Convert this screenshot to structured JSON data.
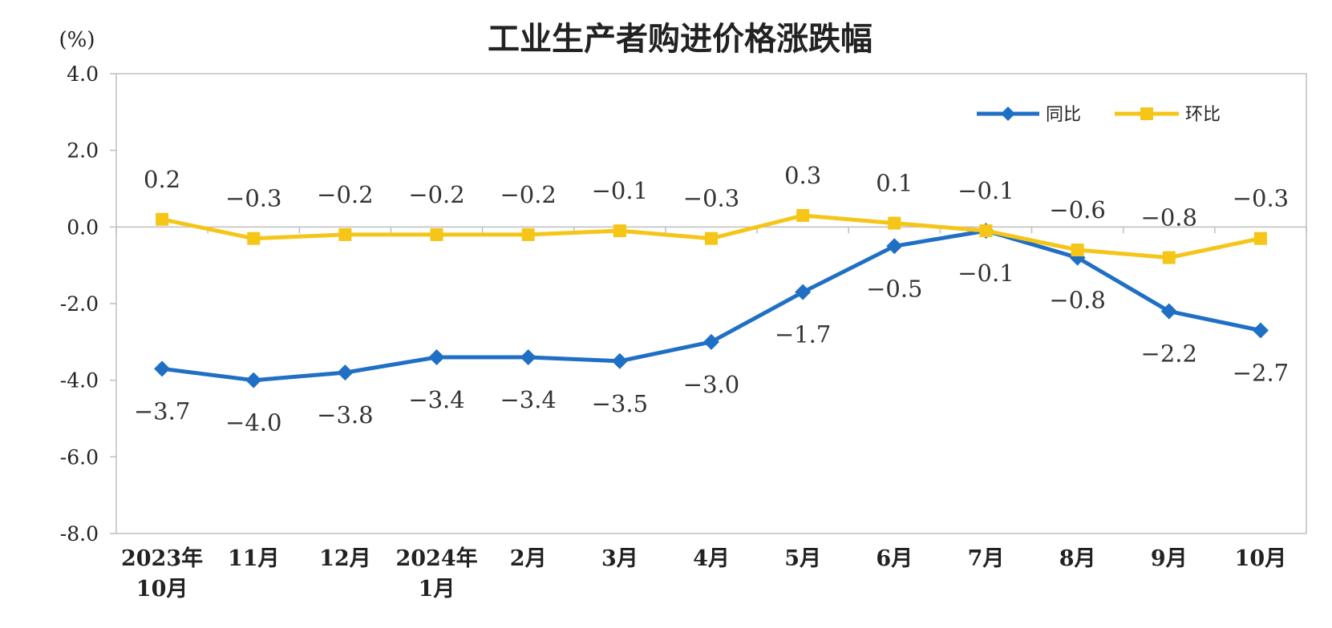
{
  "chart_data": {
    "type": "line",
    "title": "工业生产者购进价格涨跌幅",
    "y_unit": "(%)",
    "categories": [
      [
        "2023年",
        "10月"
      ],
      [
        "11月"
      ],
      [
        "12月"
      ],
      [
        "2024年",
        "1月"
      ],
      [
        "2月"
      ],
      [
        "3月"
      ],
      [
        "4月"
      ],
      [
        "5月"
      ],
      [
        "6月"
      ],
      [
        "7月"
      ],
      [
        "8月"
      ],
      [
        "9月"
      ],
      [
        "10月"
      ]
    ],
    "ylim": [
      -8.0,
      4.0
    ],
    "yticks": [
      "4.0",
      "2.0",
      "0.0",
      "-2.0",
      "-4.0",
      "-6.0",
      "-8.0"
    ],
    "legend_position": "top-right",
    "grid": false,
    "series": [
      {
        "name": "同比",
        "color": "#1f6fc5",
        "marker": "diamond",
        "values": [
          -3.7,
          -4.0,
          -3.8,
          -3.4,
          -3.4,
          -3.5,
          -3.0,
          -1.7,
          -0.5,
          -0.1,
          -0.8,
          -2.2,
          -2.7
        ],
        "labels": [
          "-3.7",
          "-4.0",
          "-3.8",
          "-3.4",
          "-3.4",
          "-3.5",
          "-3.0",
          "-1.7",
          "-0.5",
          "-0.1",
          "-0.8",
          "-2.2",
          "-2.7"
        ]
      },
      {
        "name": "环比",
        "color": "#f5c518",
        "marker": "square",
        "values": [
          0.2,
          -0.3,
          -0.2,
          -0.2,
          -0.2,
          -0.1,
          -0.3,
          0.3,
          0.1,
          -0.1,
          -0.6,
          -0.8,
          -0.3
        ],
        "labels": [
          "0.2",
          "-0.3",
          "-0.2",
          "-0.2",
          "-0.2",
          "-0.1",
          "-0.3",
          "0.3",
          "0.1",
          "-0.1",
          "-0.6",
          "-0.8",
          "-0.3"
        ]
      }
    ]
  }
}
